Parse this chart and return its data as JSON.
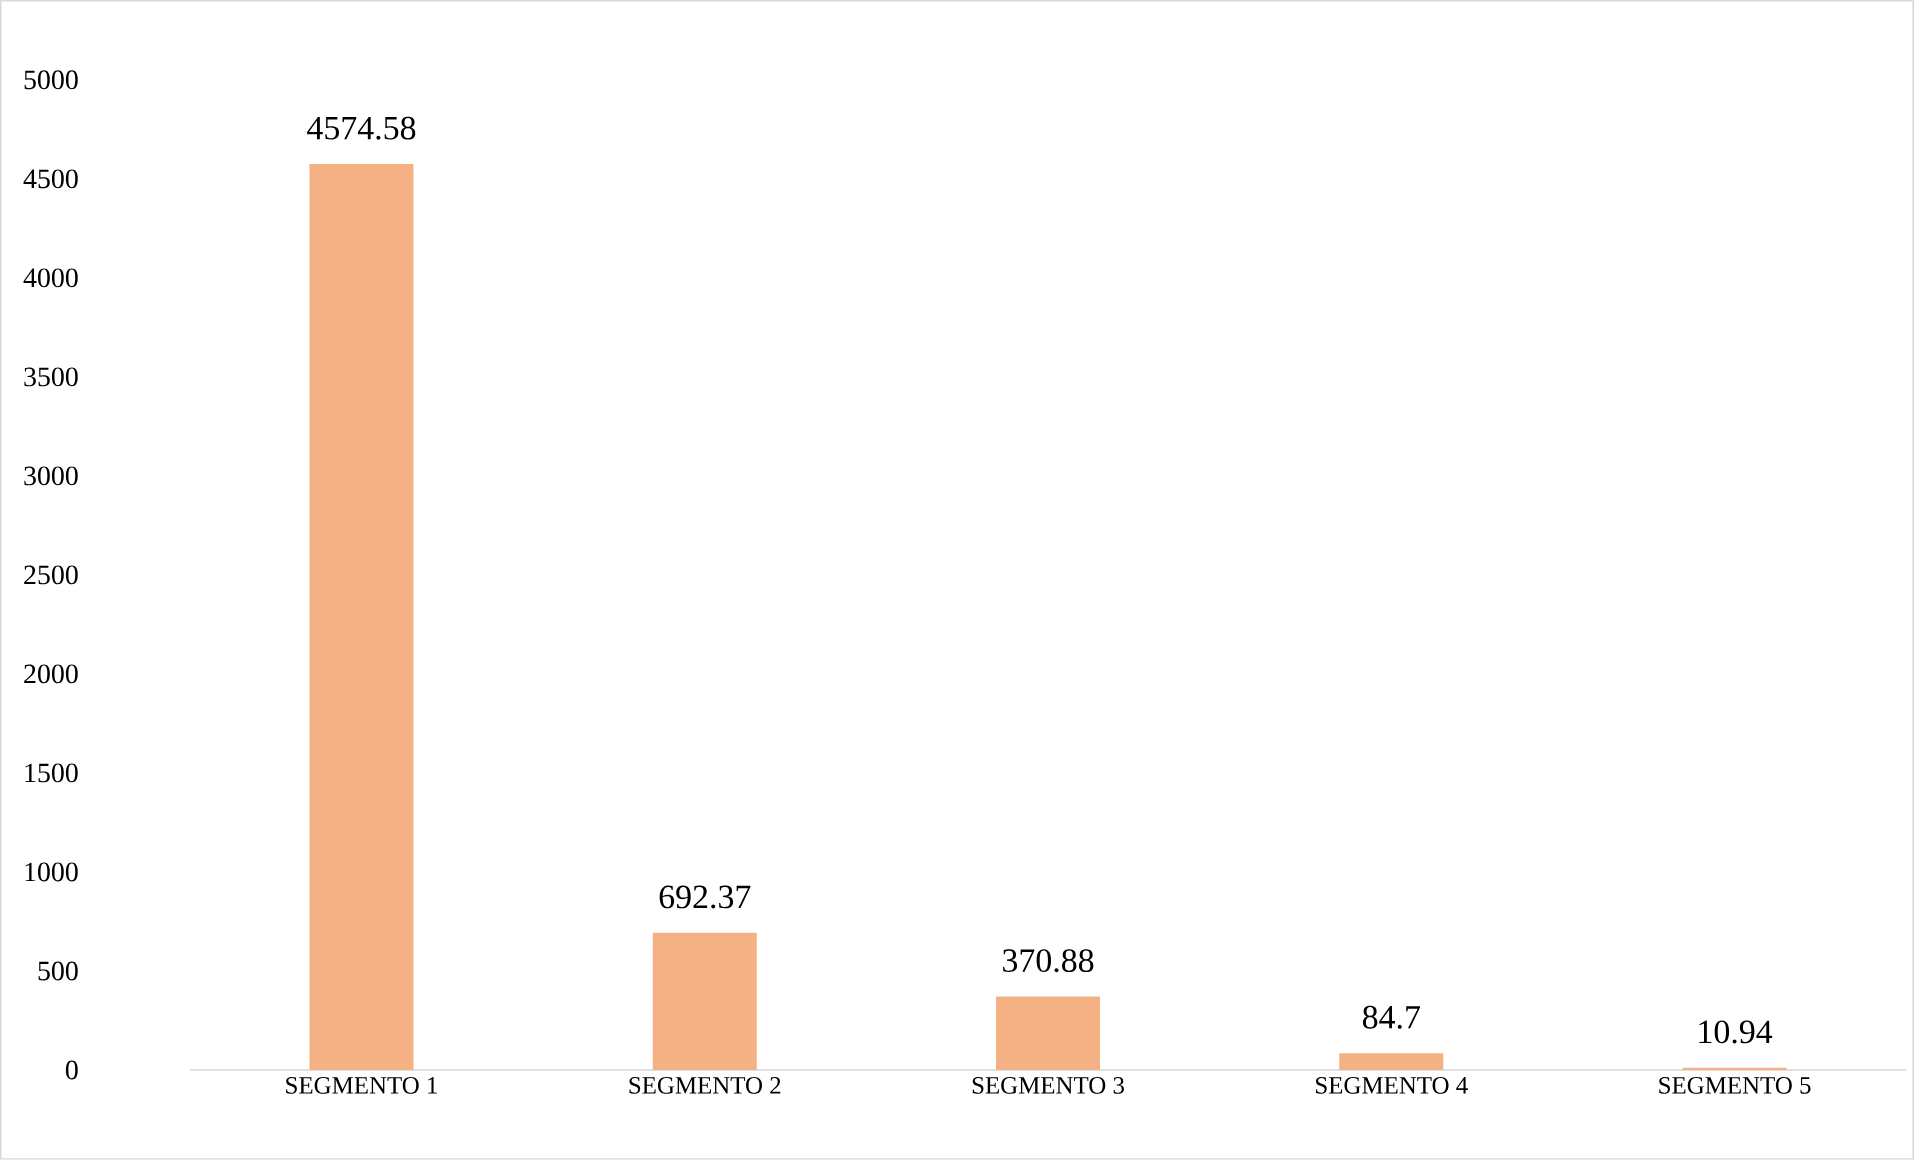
{
  "chart_data": {
    "type": "bar",
    "categories": [
      "SEGMENTO 1",
      "SEGMENTO 2",
      "SEGMENTO 3",
      "SEGMENTO 4",
      "SEGMENTO 5"
    ],
    "values": [
      4574.58,
      692.37,
      370.88,
      84.7,
      10.94
    ],
    "color": "#f4b183",
    "ylim": [
      0,
      5000
    ],
    "yticks": [
      0,
      500,
      1000,
      1500,
      2000,
      2500,
      3000,
      3500,
      4000,
      4500,
      5000
    ],
    "data_labels": true
  }
}
